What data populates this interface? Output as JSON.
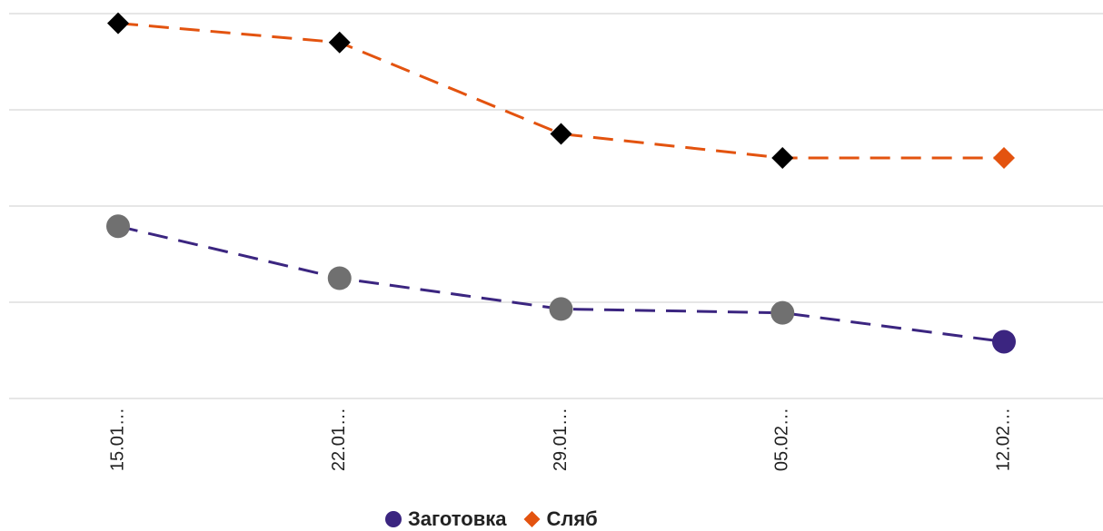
{
  "chart_data": {
    "type": "line",
    "categories": [
      "15.01…",
      "22.01…",
      "29.01…",
      "05.02…",
      "12.02…"
    ],
    "series": [
      {
        "name": "Заготовка",
        "color": "#3b2580",
        "point_color": "#707070",
        "marker": "circle",
        "values": [
          1.79,
          1.25,
          0.93,
          0.89,
          0.59
        ]
      },
      {
        "name": "Сляб",
        "color": "#e3530f",
        "point_color": "#000000",
        "marker": "diamond",
        "values": [
          3.9,
          3.7,
          2.75,
          2.5,
          2.5
        ]
      }
    ],
    "ylim": [
      0,
      4
    ],
    "yticks": [
      0,
      1,
      2,
      3,
      4
    ],
    "grid": true
  }
}
